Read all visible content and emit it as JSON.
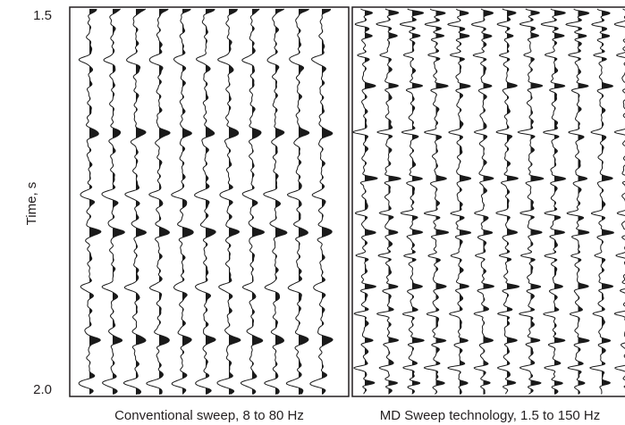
{
  "chart_data": {
    "type": "line",
    "title": "",
    "ylabel": "Time, s",
    "y_ticks": [
      "1.5",
      "2.0"
    ],
    "ylim": [
      1.5,
      2.0
    ],
    "y_inverted": true,
    "grid": false,
    "colors": {
      "trace": "#1a1a1a",
      "frame": "#231f20"
    },
    "panels": [
      {
        "name": "Conventional sweep, 8 to 80 Hz",
        "trace_count": 11,
        "frequency_range_hz": [
          8,
          80
        ],
        "event_times_s": [
          1.5,
          1.565,
          1.66,
          1.74,
          1.79,
          1.86,
          1.93,
          1.985
        ]
      },
      {
        "name": "MD Sweep technology, 1.5 to 150 Hz",
        "trace_count": 12,
        "frequency_range_hz": [
          1.5,
          150
        ],
        "event_times_s": [
          1.505,
          1.52,
          1.535,
          1.56,
          1.6,
          1.66,
          1.72,
          1.765,
          1.79,
          1.82,
          1.86,
          1.895,
          1.93,
          1.965,
          1.985
        ]
      }
    ]
  }
}
